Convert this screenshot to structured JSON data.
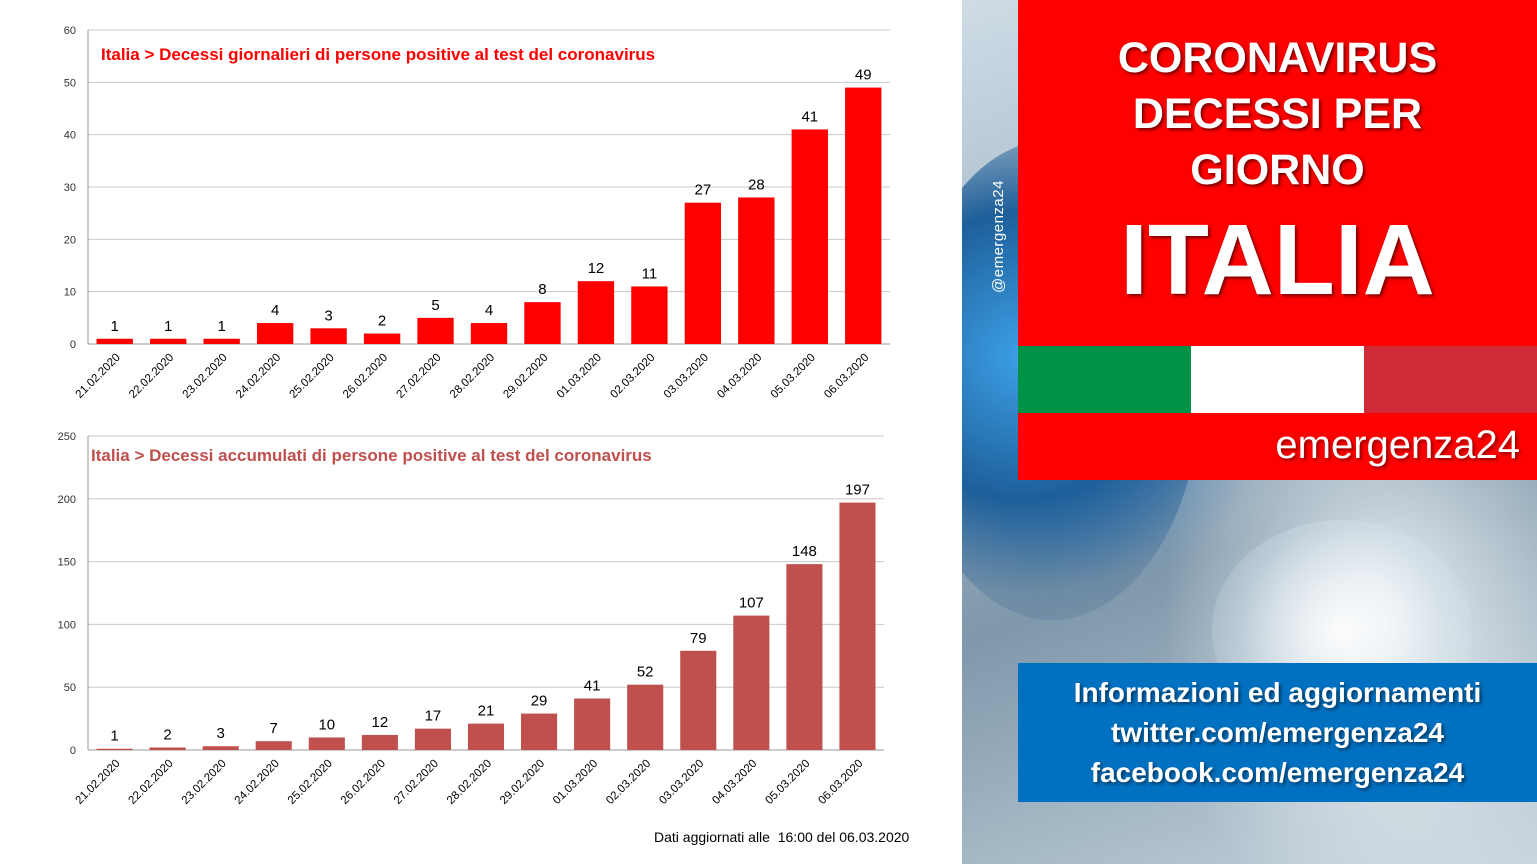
{
  "theme": {
    "red": "#fe0000",
    "daily_bar": "#ff0000",
    "cumulative_bar": "#c0504d",
    "info_blue": "#0070c0"
  },
  "chart_data": [
    {
      "type": "bar",
      "title": "Italia > Decessi giornalieri di persone positive al test del coronavirus",
      "categories": [
        "21.02.2020",
        "22.02.2020",
        "23.02.2020",
        "24.02.2020",
        "25.02.2020",
        "26.02.2020",
        "27.02.2020",
        "28.02.2020",
        "29.02.2020",
        "01.03.2020",
        "02.03.2020",
        "03.03.2020",
        "04.03.2020",
        "05.03.2020",
        "06.03.2020"
      ],
      "values": [
        1,
        1,
        1,
        4,
        3,
        2,
        5,
        4,
        8,
        12,
        11,
        27,
        28,
        41,
        49
      ],
      "ylim": [
        0,
        60
      ],
      "yticks": [
        0,
        10,
        20,
        30,
        40,
        50,
        60
      ],
      "grid": true,
      "color": "#ff0000"
    },
    {
      "type": "bar",
      "title": "Italia > Decessi accumulati di persone positive al test del coronavirus",
      "categories": [
        "21.02.2020",
        "22.02.2020",
        "23.02.2020",
        "24.02.2020",
        "25.02.2020",
        "26.02.2020",
        "27.02.2020",
        "28.02.2020",
        "29.02.2020",
        "01.03.2020",
        "02.03.2020",
        "03.03.2020",
        "04.03.2020",
        "05.03.2020",
        "06.03.2020"
      ],
      "values": [
        1,
        2,
        3,
        7,
        10,
        12,
        17,
        21,
        29,
        41,
        52,
        79,
        107,
        148,
        197
      ],
      "ylim": [
        0,
        250
      ],
      "yticks": [
        0,
        50,
        100,
        150,
        200,
        250
      ],
      "grid": true,
      "color": "#c0504d"
    }
  ],
  "footnote": "Dati aggiornati alle  16:00 del 06.03.2020",
  "handle": "@emergenza24",
  "headline": {
    "line1": "CORONAVIRUS",
    "line2": "DECESSI PER",
    "line3": "GIORNO",
    "country": "ITALIA"
  },
  "flag_colors": [
    "#009246",
    "#ffffff",
    "#ce2b37"
  ],
  "brand": "emergenza24",
  "info": {
    "line1": "Informazioni ed aggiornamenti",
    "line2": "twitter.com/emergenza24",
    "line3": "facebook.com/emergenza24"
  }
}
